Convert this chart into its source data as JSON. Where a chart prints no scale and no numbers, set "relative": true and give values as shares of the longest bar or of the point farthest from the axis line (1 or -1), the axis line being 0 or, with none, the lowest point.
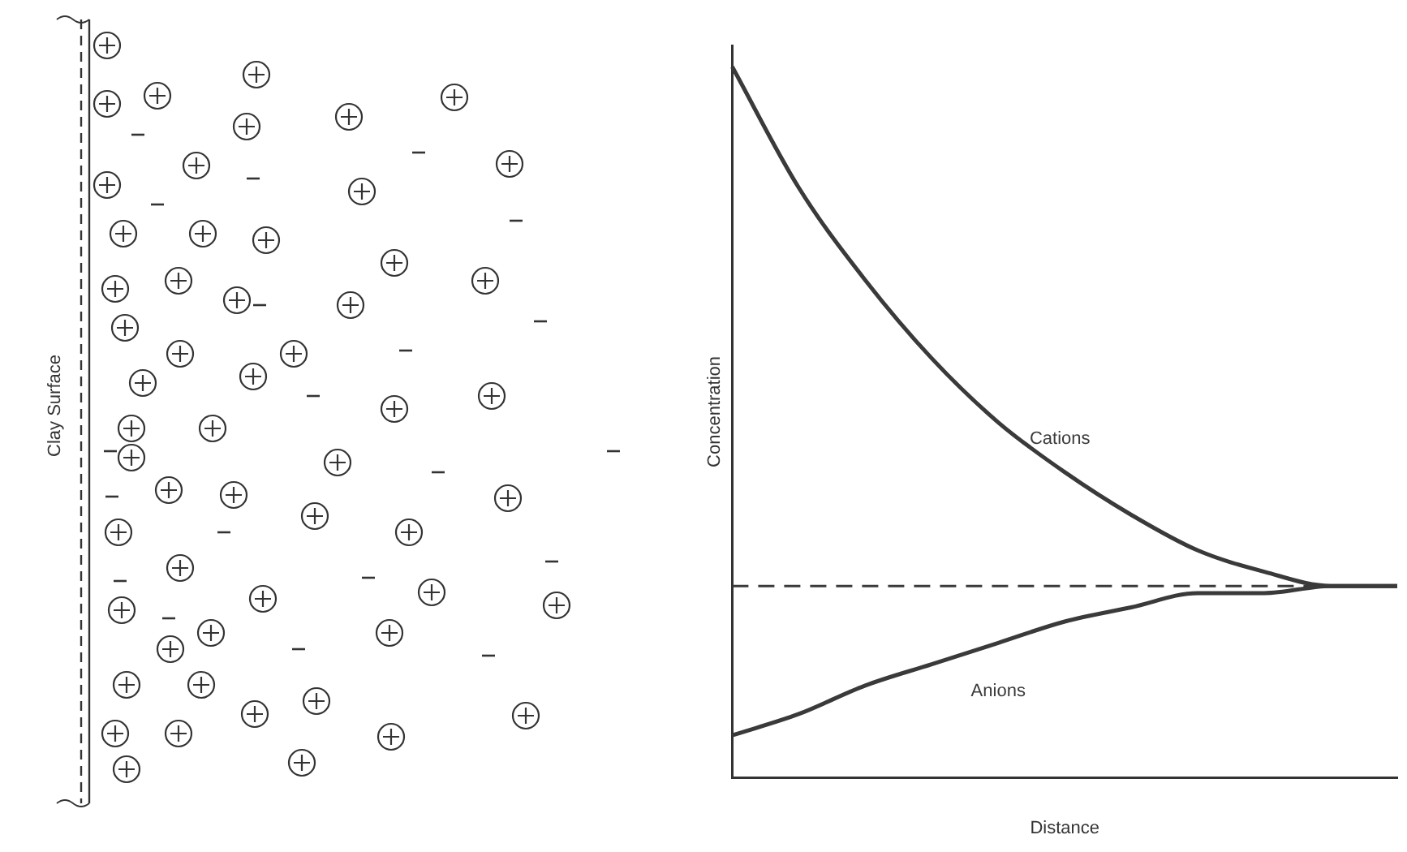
{
  "chart_data": {
    "type": "line",
    "relative": true,
    "xlabel": "Distance",
    "ylabel": "Concentration",
    "categories": [
      null,
      null,
      null,
      null,
      null,
      null,
      null,
      null,
      null,
      null,
      null
    ],
    "series": [
      {
        "name": "Cations",
        "color": "#3a3a3a",
        "values": [
          1.0,
          0.83,
          0.7,
          0.59,
          0.5,
          0.43,
          0.37,
          0.32,
          0.29,
          0.27,
          0.27
        ]
      },
      {
        "name": "Anions",
        "color": "#3a3a3a",
        "values": [
          0.06,
          0.09,
          0.13,
          0.16,
          0.19,
          0.22,
          0.24,
          0.26,
          0.26,
          0.27,
          0.27
        ]
      }
    ],
    "ref_lines": [
      {
        "axis": "y",
        "value": 0.27,
        "color": "#3a3a3a",
        "line_style": "dashed"
      }
    ],
    "annotations": [
      "Clay Surface"
    ],
    "grid": false,
    "legend": false,
    "marker": "none",
    "line_style": "solid"
  }
}
